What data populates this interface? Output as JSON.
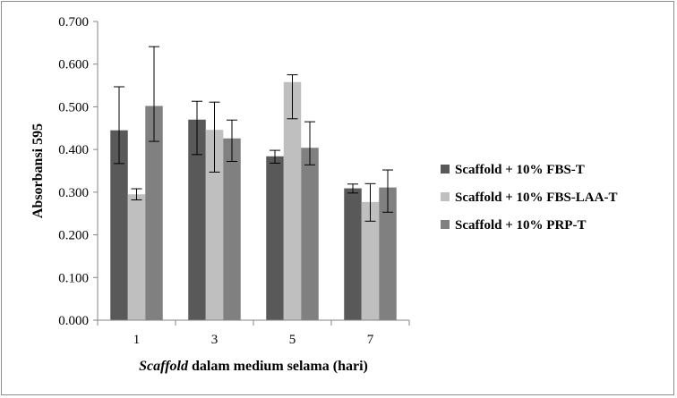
{
  "chart_data": {
    "type": "bar",
    "title": "",
    "xlabel_italic": "Scaffold",
    "xlabel_rest": " dalam medium selama (hari)",
    "ylabel": "Absorbansi 595",
    "categories": [
      "1",
      "3",
      "5",
      "7"
    ],
    "ylim": [
      0,
      0.7
    ],
    "yticks": [
      "0.000",
      "0.100",
      "0.200",
      "0.300",
      "0.400",
      "0.500",
      "0.600",
      "0.700"
    ],
    "ytick_values": [
      0,
      0.1,
      0.2,
      0.3,
      0.4,
      0.5,
      0.6,
      0.7
    ],
    "grid": false,
    "legend_position": "right",
    "series": [
      {
        "name": "Scaffold + 10% FBS-T",
        "color": "#595959",
        "values": [
          0.445,
          0.47,
          0.384,
          0.309
        ],
        "err_low": [
          0.367,
          0.388,
          0.368,
          0.298
        ],
        "err_high": [
          0.547,
          0.513,
          0.398,
          0.319
        ]
      },
      {
        "name": "Scaffold + 10% FBS-LAA-T",
        "color": "#bfbfbf",
        "values": [
          0.295,
          0.446,
          0.558,
          0.277
        ],
        "err_low": [
          0.282,
          0.347,
          0.472,
          0.232
        ],
        "err_high": [
          0.308,
          0.511,
          0.575,
          0.32
        ]
      },
      {
        "name": "Scaffold + 10% PRP-T",
        "color": "#808080",
        "values": [
          0.502,
          0.426,
          0.404,
          0.311
        ],
        "err_low": [
          0.419,
          0.372,
          0.364,
          0.253
        ],
        "err_high": [
          0.641,
          0.469,
          0.465,
          0.352
        ]
      }
    ]
  }
}
